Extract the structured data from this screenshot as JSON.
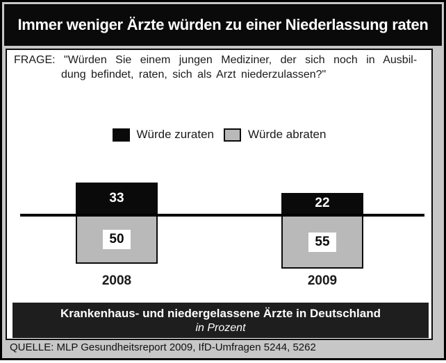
{
  "title": "Immer weniger Ärzte würden zu einer Niederlassung raten",
  "question": {
    "line1": "FRAGE: \"Würden Sie einem jungen Mediziner, der sich noch in Ausbil-",
    "line2": "dung befindet, raten, sich als Arzt niederzulassen?\""
  },
  "legend": {
    "items": [
      {
        "label": "Würde zuraten",
        "color": "#0a0a0a"
      },
      {
        "label": "Würde abraten",
        "color": "#b9b9b9"
      }
    ]
  },
  "chart_data": {
    "type": "bar",
    "subtype": "diverging-stacked",
    "categories": [
      "2008",
      "2009"
    ],
    "series": [
      {
        "name": "Würde zuraten",
        "values": [
          33,
          22
        ],
        "color": "#0a0a0a",
        "direction": "above-baseline"
      },
      {
        "name": "Würde abraten",
        "values": [
          50,
          55
        ],
        "color": "#b9b9b9",
        "direction": "below-baseline"
      }
    ],
    "unit": "percent",
    "baseline": 0,
    "grid": false,
    "legend_position": "top-center"
  },
  "footer": {
    "line1": "Krankenhaus- und niedergelassene Ärzte in Deutschland",
    "line2": "in Prozent"
  },
  "source": "QUELLE: MLP Gesundheitsreport 2009, IfD-Umfragen 5244, 5262",
  "colors": {
    "background_gray": "#c7c7c7",
    "bar_gray": "#b9b9b9",
    "bar_black": "#0a0a0a",
    "footer_black": "#1e1e1e",
    "text_white": "#ffffff"
  }
}
